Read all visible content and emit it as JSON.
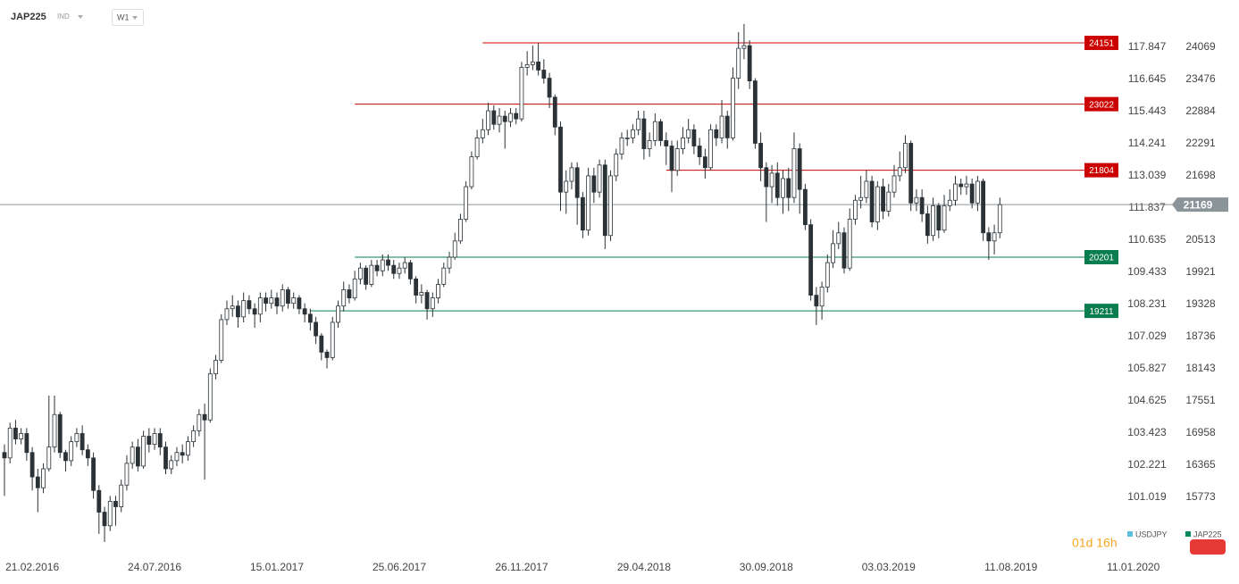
{
  "toolbar": {
    "symbol": "JAP225",
    "market": "IND",
    "timeframe": "W1",
    "countdown": "01d 16h"
  },
  "chart_data": {
    "type": "candlestick",
    "legend": [
      {
        "name": "USDJPY",
        "color": "#5bc0de"
      },
      {
        "name": "JAP225",
        "color": "#0a8a5a"
      }
    ],
    "xlim": [
      -0.8,
      200.8
    ],
    "xticks": [
      {
        "value": 5,
        "label": "21.02.2016"
      },
      {
        "value": 27,
        "label": "24.07.2016"
      },
      {
        "value": 49,
        "label": "15.01.2017"
      },
      {
        "value": 71,
        "label": "25.06.2017"
      },
      {
        "value": 93,
        "label": "26.11.2017"
      },
      {
        "value": 115,
        "label": "29.04.2018"
      },
      {
        "value": 137,
        "label": "30.09.2018"
      },
      {
        "value": 159,
        "label": "03.03.2019"
      },
      {
        "value": 181,
        "label": "11.08.2019"
      },
      {
        "value": 203,
        "label": "11.01.2020"
      }
    ],
    "ylim": [
      14818,
      24777
    ],
    "yticks": [
      24069,
      23476,
      22884,
      22291,
      21698,
      20513,
      19921,
      19328,
      18736,
      18143,
      17551,
      16958,
      16365,
      15773
    ],
    "y2lim": [
      99.082,
      119.283
    ],
    "y2ticks": [
      117.847,
      116.645,
      115.443,
      114.241,
      113.039,
      111.837,
      110.635,
      109.433,
      108.231,
      107.029,
      105.827,
      104.625,
      103.423,
      102.221,
      101.019
    ],
    "last_price": 21169,
    "last_color": "#8a9499",
    "levels": [
      {
        "value": 24151,
        "start": 86,
        "color": "#cc0000"
      },
      {
        "value": 23022,
        "start": 63,
        "color": "#cc0000"
      },
      {
        "value": 21804,
        "start": 119,
        "color": "#cc0000"
      },
      {
        "value": 20201,
        "start": 63,
        "color": "#0a7d4e"
      },
      {
        "value": 19211,
        "start": 55,
        "color": "#0a7d4e"
      }
    ],
    "series": [
      {
        "name": "JAP225",
        "up_color": "#ffffff",
        "down_color": "#2b3237",
        "open": [
          16600,
          16500,
          17050,
          16850,
          16950,
          16600,
          16150,
          15950,
          16300,
          16700,
          17300,
          16600,
          16450,
          16800,
          16950,
          16650,
          16500,
          15900,
          15500,
          15250,
          15700,
          15600,
          16000,
          16400,
          16700,
          16350,
          16900,
          16750,
          16950,
          16700,
          16300,
          16450,
          16600,
          16550,
          16800,
          17000,
          17300,
          17200,
          18050,
          18300,
          19050,
          19250,
          19300,
          19100,
          19400,
          19250,
          19150,
          19450,
          19350,
          19450,
          19300,
          19600,
          19350,
          19450,
          19250,
          19150,
          19000,
          18750,
          18450,
          18350,
          19000,
          19300,
          19600,
          19450,
          19800,
          20000,
          19700,
          20050,
          19950,
          20150,
          20050,
          19900,
          20000,
          20100,
          19800,
          19500,
          19550,
          19250,
          19450,
          19700,
          20000,
          20200,
          20500,
          20900,
          21500,
          22050,
          22400,
          22550,
          22900,
          22650,
          22800,
          22700,
          22850,
          22750,
          23700,
          23750,
          23800,
          23650,
          23500,
          23150,
          22600,
          21400,
          21600,
          21850,
          21300,
          20700,
          21700,
          21400,
          21900,
          20600,
          21700,
          22100,
          22400,
          22400,
          22550,
          22750,
          22200,
          22350,
          22700,
          22350,
          22250,
          21800,
          22200,
          22400,
          22550,
          22250,
          22050,
          21850,
          22550,
          22400,
          22800,
          22400,
          23500,
          24050,
          24100,
          23450,
          22300,
          21850,
          21500,
          21750,
          21300,
          21650,
          21300,
          22200,
          21450,
          20800,
          19500,
          19300,
          19650,
          20100,
          20450,
          20650,
          20000,
          20900,
          21250,
          21300,
          21600,
          20850,
          21500,
          21050,
          21400,
          21700,
          21850,
          22300,
          21200,
          21300,
          21000,
          20600,
          21150,
          20700,
          21150,
          21250,
          21550,
          21500,
          21550,
          21200,
          21600,
          20650,
          20500,
          20650
        ],
        "high": [
          16750,
          17150,
          17200,
          17050,
          17050,
          16700,
          16300,
          16400,
          17650,
          17650,
          17350,
          16650,
          16900,
          17050,
          17100,
          16750,
          16600,
          16000,
          15600,
          15800,
          15800,
          16100,
          16550,
          16800,
          16850,
          17000,
          17050,
          17050,
          17050,
          16800,
          16550,
          16700,
          16750,
          16900,
          17100,
          17400,
          17500,
          18150,
          18400,
          19150,
          19400,
          19500,
          19400,
          19550,
          19500,
          19350,
          19550,
          19550,
          19600,
          19550,
          19700,
          19650,
          19550,
          19500,
          19350,
          19250,
          19100,
          18800,
          18500,
          19100,
          19400,
          19750,
          19700,
          19950,
          20100,
          20050,
          20150,
          20150,
          20250,
          20250,
          20150,
          20100,
          20200,
          20150,
          19850,
          19700,
          19600,
          19550,
          19800,
          20100,
          20300,
          20650,
          21000,
          21600,
          22150,
          22550,
          22750,
          23050,
          23000,
          22950,
          22900,
          22950,
          22950,
          23800,
          24000,
          24100,
          24150,
          23850,
          23600,
          23200,
          22700,
          21800,
          21950,
          21950,
          21400,
          21850,
          21850,
          22000,
          22000,
          21800,
          22200,
          22500,
          22550,
          22650,
          22900,
          22900,
          22500,
          22850,
          22750,
          22500,
          22350,
          22350,
          22600,
          22750,
          22650,
          22400,
          22200,
          22650,
          22650,
          23100,
          22900,
          23700,
          24350,
          24500,
          24200,
          23500,
          22500,
          21950,
          21900,
          21950,
          21800,
          21850,
          22500,
          22300,
          21550,
          20900,
          19650,
          19750,
          20250,
          20700,
          20850,
          20750,
          21100,
          21350,
          21700,
          21800,
          21700,
          21600,
          21650,
          21550,
          21900,
          22150,
          22450,
          22350,
          21450,
          21450,
          21150,
          21300,
          21200,
          21350,
          21450,
          21700,
          21650,
          21700,
          21650,
          21700,
          21650,
          20750,
          20800,
          21300
        ],
        "low": [
          15800,
          16400,
          16750,
          16750,
          16450,
          15900,
          15500,
          15850,
          16250,
          16600,
          16500,
          16250,
          16350,
          16700,
          16550,
          16350,
          15750,
          15100,
          14950,
          15150,
          15250,
          15500,
          15900,
          16300,
          16250,
          16300,
          16600,
          16650,
          16550,
          16200,
          16200,
          16350,
          16400,
          16450,
          16700,
          16900,
          16100,
          17150,
          17950,
          18250,
          18950,
          19100,
          18900,
          19000,
          19150,
          18900,
          19000,
          19200,
          19250,
          19150,
          19200,
          19250,
          19250,
          19150,
          19000,
          18850,
          18600,
          18300,
          18150,
          18300,
          18900,
          19200,
          19350,
          19400,
          19700,
          19600,
          19650,
          19850,
          19850,
          19950,
          19800,
          19800,
          19900,
          19700,
          19350,
          19350,
          19050,
          19100,
          19350,
          19650,
          19900,
          20150,
          20450,
          20850,
          21450,
          22000,
          22300,
          22450,
          22550,
          22500,
          22200,
          22600,
          22650,
          22700,
          23550,
          23650,
          23550,
          23400,
          22950,
          22450,
          21050,
          21000,
          21450,
          20800,
          20550,
          20600,
          21200,
          21300,
          20350,
          20500,
          21600,
          22000,
          22250,
          22300,
          22450,
          22000,
          22050,
          22250,
          22250,
          21900,
          21400,
          21700,
          22100,
          22300,
          22100,
          21900,
          21650,
          21800,
          22250,
          22300,
          22200,
          22350,
          23300,
          23850,
          23300,
          22200,
          21600,
          20850,
          21200,
          21150,
          21000,
          21050,
          21200,
          21000,
          20700,
          19400,
          18950,
          19050,
          19550,
          20000,
          20350,
          19900,
          19950,
          20800,
          21100,
          21200,
          20750,
          20700,
          20900,
          20950,
          21300,
          21600,
          21750,
          21050,
          21050,
          20850,
          20450,
          20500,
          20550,
          20650,
          21050,
          21150,
          21350,
          21350,
          21100,
          21050,
          20500,
          20150,
          20250,
          20550
        ],
        "close": [
          16500,
          17050,
          16850,
          16950,
          16600,
          16150,
          15950,
          16300,
          16700,
          17300,
          16600,
          16450,
          16800,
          16950,
          16650,
          16500,
          15900,
          15500,
          15250,
          15700,
          15600,
          16000,
          16400,
          16700,
          16350,
          16900,
          16750,
          16950,
          16700,
          16300,
          16450,
          16600,
          16550,
          16800,
          17000,
          17300,
          17200,
          18050,
          18300,
          19050,
          19250,
          19300,
          19100,
          19400,
          19250,
          19150,
          19450,
          19350,
          19450,
          19300,
          19600,
          19350,
          19450,
          19250,
          19150,
          19000,
          18750,
          18450,
          18350,
          19000,
          19300,
          19600,
          19450,
          19800,
          20000,
          19700,
          20050,
          19950,
          20150,
          20050,
          19900,
          20000,
          20100,
          19800,
          19500,
          19550,
          19250,
          19450,
          19700,
          20000,
          20200,
          20500,
          20900,
          21500,
          22050,
          22400,
          22550,
          22900,
          22650,
          22800,
          22700,
          22850,
          22750,
          23700,
          23750,
          23800,
          23650,
          23500,
          23150,
          22600,
          21400,
          21600,
          21850,
          21300,
          20700,
          21700,
          21400,
          21900,
          20600,
          21700,
          22100,
          22400,
          22400,
          22550,
          22750,
          22200,
          22350,
          22700,
          22350,
          22250,
          21800,
          22200,
          22400,
          22550,
          22250,
          22050,
          21850,
          22550,
          22400,
          22800,
          22400,
          23500,
          24050,
          24100,
          23450,
          22300,
          21850,
          21500,
          21750,
          21300,
          21650,
          21300,
          22200,
          21450,
          20800,
          19500,
          19300,
          19650,
          20100,
          20450,
          20650,
          20000,
          20900,
          21250,
          21300,
          21600,
          20850,
          21500,
          21050,
          21400,
          21700,
          21850,
          22300,
          21200,
          21300,
          21000,
          20600,
          21150,
          20700,
          21150,
          21250,
          21550,
          21500,
          21550,
          21200,
          21600,
          20650,
          20500,
          20650,
          21169
        ]
      }
    ]
  }
}
